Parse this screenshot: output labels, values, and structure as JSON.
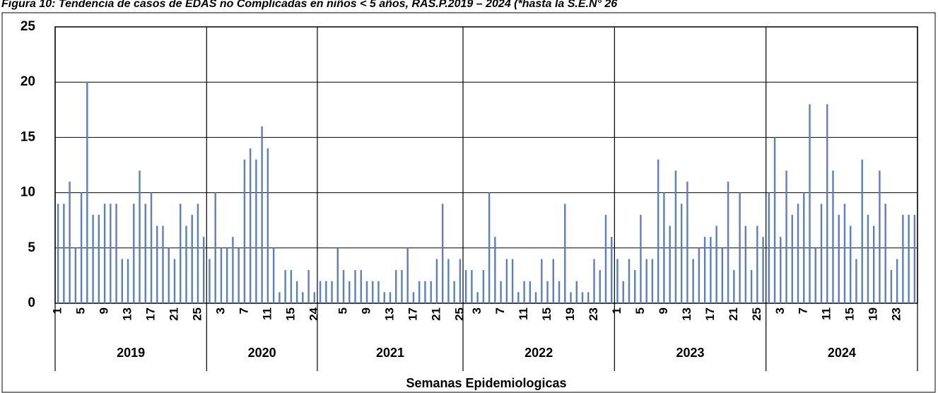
{
  "chart_data": {
    "type": "bar",
    "title": "Figura 10: Tendencia de casos de EDAS no Complicadas en niños < 5 años, RAS.P.2019 – 2024 (*hasta la S.E.N° 26",
    "x_label": "Semanas Epidemiologicas",
    "color": "#5b7fbf",
    "ylim": [
      0,
      25
    ],
    "yticks": [
      0,
      5,
      10,
      15,
      20,
      25
    ],
    "grid": true,
    "years": [
      {
        "name": "2019",
        "weeks": [
          1,
          null,
          null,
          null,
          5,
          null,
          null,
          null,
          9,
          null,
          null,
          null,
          13,
          null,
          null,
          null,
          17,
          null,
          null,
          null,
          21,
          null,
          null,
          null,
          25,
          null
        ],
        "values": [
          9,
          9,
          11,
          5,
          10,
          20,
          8,
          8,
          9,
          9,
          9,
          4,
          4,
          9,
          12,
          9,
          10,
          7,
          7,
          5,
          4,
          9,
          7,
          8,
          9,
          6
        ]
      },
      {
        "name": "2020",
        "weeks": [
          null,
          null,
          3,
          null,
          null,
          null,
          7,
          null,
          null,
          null,
          11,
          null,
          null,
          null,
          15,
          null,
          null,
          null,
          24
        ],
        "values": [
          4,
          10,
          5,
          5,
          6,
          5,
          13,
          14,
          13,
          16,
          14,
          5,
          1,
          3,
          3,
          2,
          1,
          3,
          1
        ]
      },
      {
        "name": "2021",
        "weeks": [
          null,
          null,
          null,
          null,
          5,
          null,
          null,
          null,
          9,
          null,
          null,
          null,
          13,
          null,
          null,
          null,
          17,
          null,
          null,
          null,
          21,
          null,
          null,
          null,
          25
        ],
        "values": [
          2,
          2,
          2,
          5,
          3,
          2,
          3,
          3,
          2,
          2,
          2,
          1,
          1,
          3,
          3,
          5,
          1,
          2,
          2,
          2,
          4,
          9,
          4,
          2,
          4
        ]
      },
      {
        "name": "2022",
        "weeks": [
          null,
          null,
          3,
          null,
          null,
          null,
          7,
          null,
          null,
          null,
          11,
          null,
          null,
          null,
          15,
          null,
          null,
          null,
          19,
          null,
          null,
          null,
          23,
          null,
          null,
          null
        ],
        "values": [
          3,
          3,
          1,
          3,
          10,
          6,
          2,
          4,
          4,
          1,
          2,
          2,
          1,
          4,
          2,
          4,
          2,
          9,
          1,
          2,
          1,
          1,
          4,
          3,
          8,
          6
        ]
      },
      {
        "name": "2023",
        "weeks": [
          1,
          null,
          null,
          null,
          5,
          null,
          null,
          null,
          9,
          null,
          null,
          null,
          13,
          null,
          null,
          null,
          17,
          null,
          null,
          null,
          21,
          null,
          null,
          null,
          25,
          null
        ],
        "values": [
          4,
          2,
          4,
          3,
          8,
          4,
          4,
          13,
          10,
          7,
          12,
          9,
          11,
          4,
          5,
          6,
          6,
          7,
          5,
          11,
          3,
          10,
          7,
          3,
          7,
          6
        ]
      },
      {
        "name": "2024",
        "weeks": [
          null,
          null,
          3,
          null,
          null,
          null,
          7,
          null,
          null,
          null,
          11,
          null,
          null,
          null,
          15,
          null,
          null,
          null,
          19,
          null,
          null,
          null,
          23,
          null,
          null,
          null
        ],
        "values": [
          10,
          15,
          6,
          12,
          8,
          9,
          10,
          18,
          5,
          9,
          18,
          12,
          8,
          9,
          7,
          4,
          13,
          8,
          7,
          12,
          9,
          3,
          4,
          8,
          8,
          8
        ]
      }
    ]
  }
}
